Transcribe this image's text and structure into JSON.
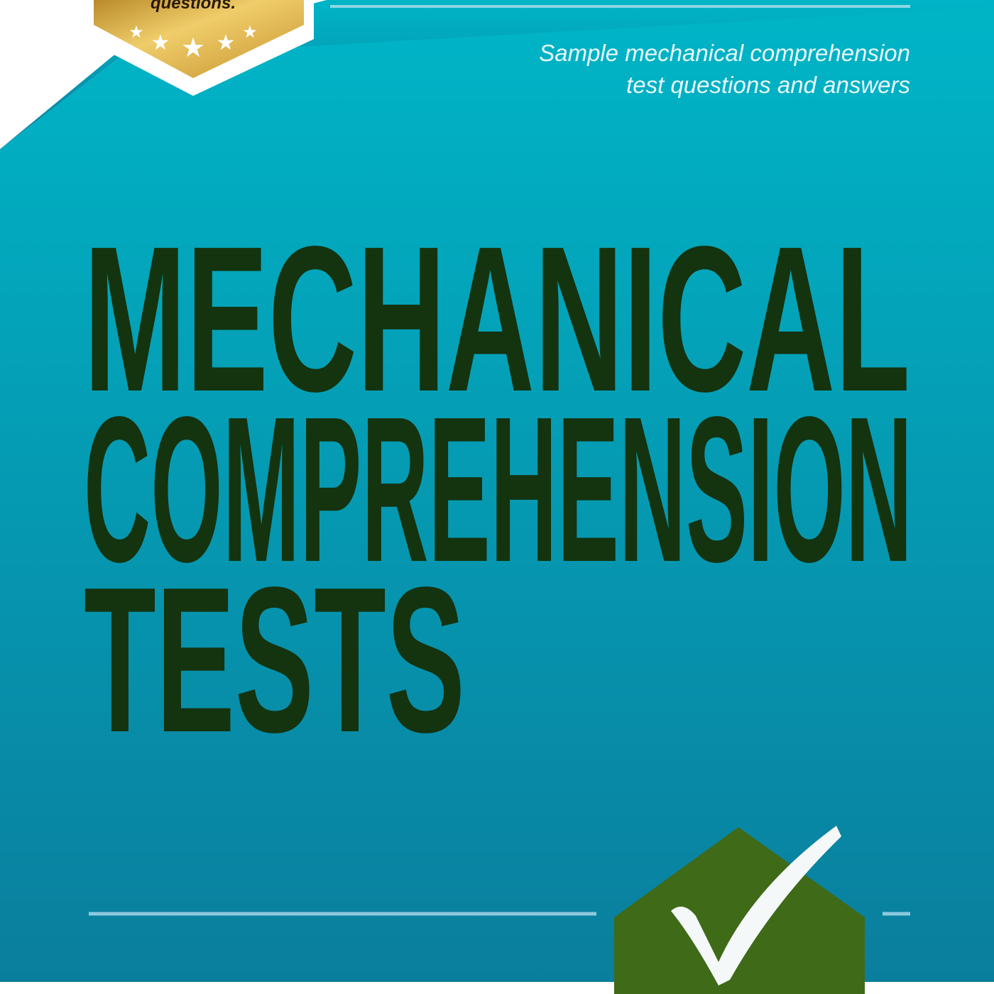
{
  "cover": {
    "badge_text": "questions.",
    "badge_stars": 5,
    "subtitle_lines": [
      "Sample mechanical comprehension",
      "test questions and answers"
    ],
    "title_lines": [
      "MECHANICAL",
      "COMPREHENSION",
      "TESTS"
    ],
    "colors": {
      "teal_top": "#00b5c7",
      "teal_bottom": "#0a7e9d",
      "title": "#14330f",
      "badge_gold": "#d9a93a",
      "check_badge": "#3f6a18"
    }
  }
}
